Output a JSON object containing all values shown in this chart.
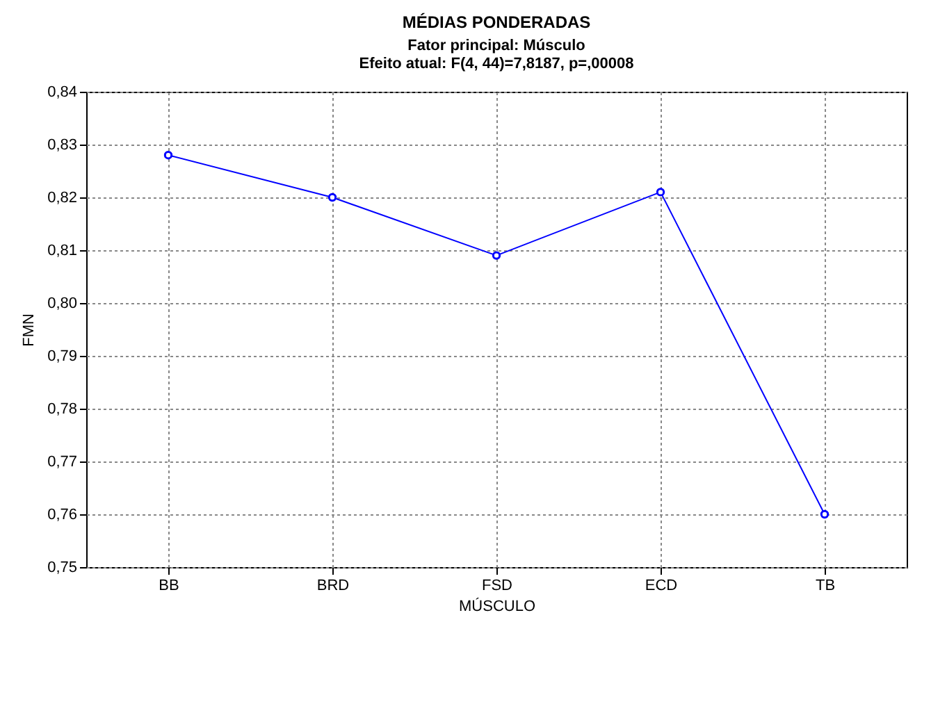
{
  "chart_data": {
    "type": "line",
    "title": "MÉDIAS PONDERADAS",
    "subtitle": "Fator principal: Músculo\nEfeito atual: F(4, 44)=7,8187, p=,00008",
    "xlabel": "MÚSCULO",
    "ylabel": "FMN",
    "categories": [
      "BB",
      "BRD",
      "FSD",
      "ECD",
      "TB"
    ],
    "series": [
      {
        "color": "#0000ff",
        "values": [
          0.828,
          0.82,
          0.809,
          0.821,
          0.76
        ]
      }
    ],
    "ylim": [
      0.75,
      0.84
    ],
    "yticks": [
      {
        "value": 0.75,
        "label": "0,75"
      },
      {
        "value": 0.76,
        "label": "0,76"
      },
      {
        "value": 0.77,
        "label": "0,77"
      },
      {
        "value": 0.78,
        "label": "0,78"
      },
      {
        "value": 0.79,
        "label": "0,79"
      },
      {
        "value": 0.8,
        "label": "0,80"
      },
      {
        "value": 0.81,
        "label": "0,81"
      },
      {
        "value": 0.82,
        "label": "0,82"
      },
      {
        "value": 0.83,
        "label": "0,83"
      },
      {
        "value": 0.84,
        "label": "0,84"
      }
    ],
    "grid": true,
    "marker": "circle",
    "line_style": "solid"
  }
}
